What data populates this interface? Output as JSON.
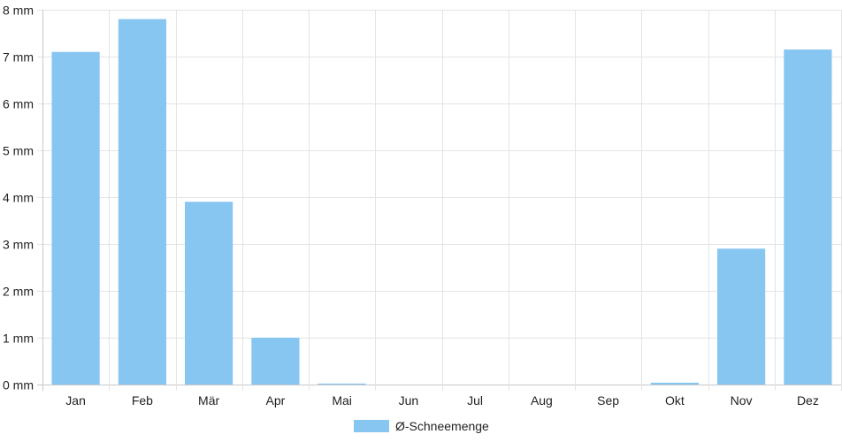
{
  "chart_data": {
    "type": "bar",
    "categories": [
      "Jan",
      "Feb",
      "Mär",
      "Apr",
      "Mai",
      "Jun",
      "Jul",
      "Aug",
      "Sep",
      "Okt",
      "Nov",
      "Dez"
    ],
    "series": [
      {
        "name": "Ø-Schneemenge",
        "values": [
          7.1,
          7.8,
          3.9,
          1.0,
          0.02,
          0,
          0,
          0,
          0,
          0.04,
          2.9,
          7.15
        ],
        "color": "#88c6f2"
      }
    ],
    "y_unit": "mm",
    "ylim": [
      0,
      8
    ],
    "y_ticks": [
      "0 mm",
      "1 mm",
      "2 mm",
      "3 mm",
      "4 mm",
      "5 mm",
      "6 mm",
      "7 mm",
      "8 mm"
    ],
    "grid": true,
    "legend_position": "bottom-center",
    "title": "",
    "xlabel": "",
    "ylabel": ""
  }
}
